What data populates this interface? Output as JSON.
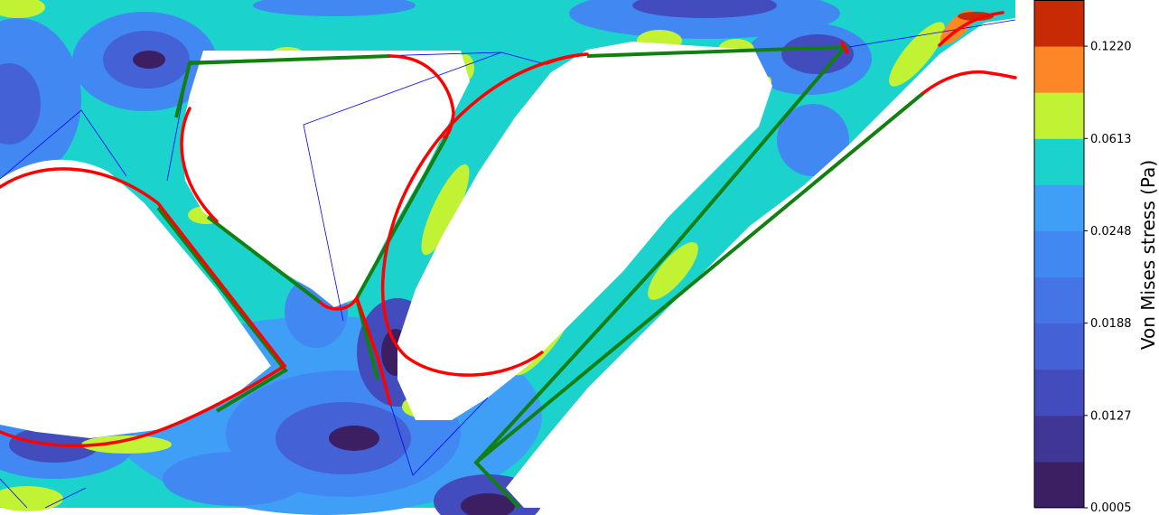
{
  "chart_data": {
    "type": "contour",
    "title": "",
    "colorbar": {
      "label": "Von Mises stress (Pa)",
      "tick_labels": [
        "0.0005",
        "0.0127",
        "0.0188",
        "0.0248",
        "0.0613",
        "0.1220"
      ],
      "levels": [
        {
          "color": "#3b1f62"
        },
        {
          "color": "#3f3696"
        },
        {
          "color": "#434cbc"
        },
        {
          "color": "#4461d6"
        },
        {
          "color": "#4474e6"
        },
        {
          "color": "#4288f2"
        },
        {
          "color": "#3f9ff7"
        },
        {
          "color": "#1bd2cc"
        },
        {
          "color": "#c2f234"
        },
        {
          "color": "#fd8626"
        },
        {
          "color": "#c92a06"
        }
      ]
    },
    "overlays": {
      "green_path": {
        "color": "#118011",
        "name": "green polyline"
      },
      "red_arcs": {
        "color": "#ff0000",
        "name": "red arcs"
      },
      "blue_outline": {
        "color": "#0000ff",
        "name": "blue triangle outline"
      }
    }
  }
}
